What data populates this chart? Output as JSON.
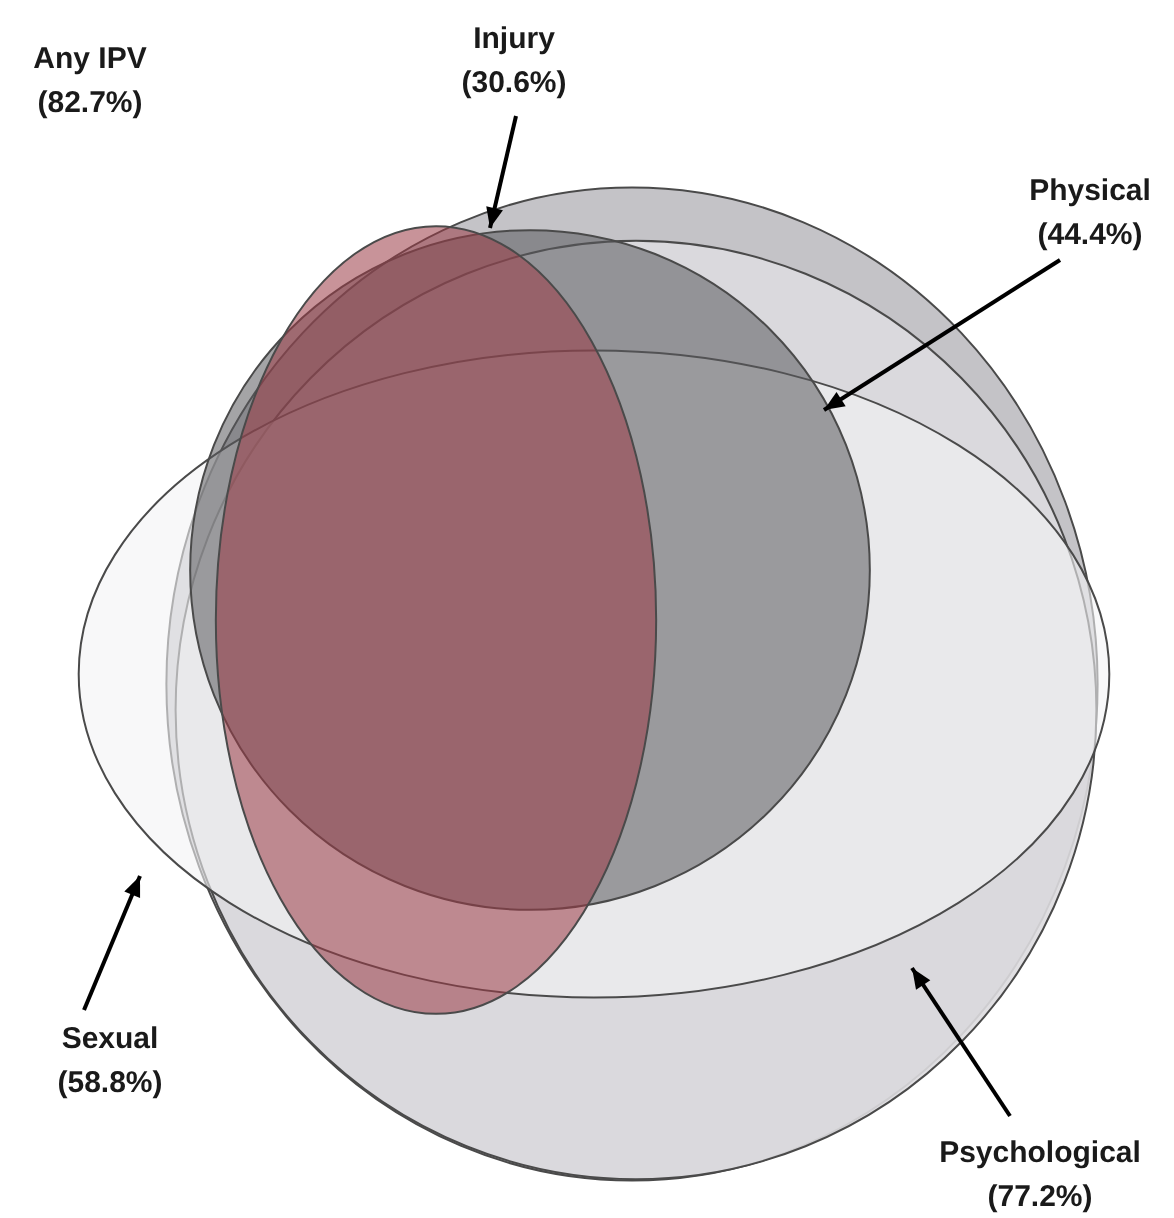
{
  "chart_data": {
    "type": "other",
    "categories": [
      "Any IPV",
      "Psychological",
      "Sexual",
      "Physical",
      "Injury"
    ],
    "values": [
      82.7,
      77.2,
      58.8,
      44.4,
      30.6
    ],
    "value_labels": [
      "(82.7%)",
      "(77.2%)",
      "(58.8%)",
      "(44.4%)",
      "(30.6%)"
    ],
    "colors": [
      "#c4c3c7",
      "#dddcdf",
      "#f4f4f5",
      "#5a595c",
      "#9b3a45"
    ]
  }
}
